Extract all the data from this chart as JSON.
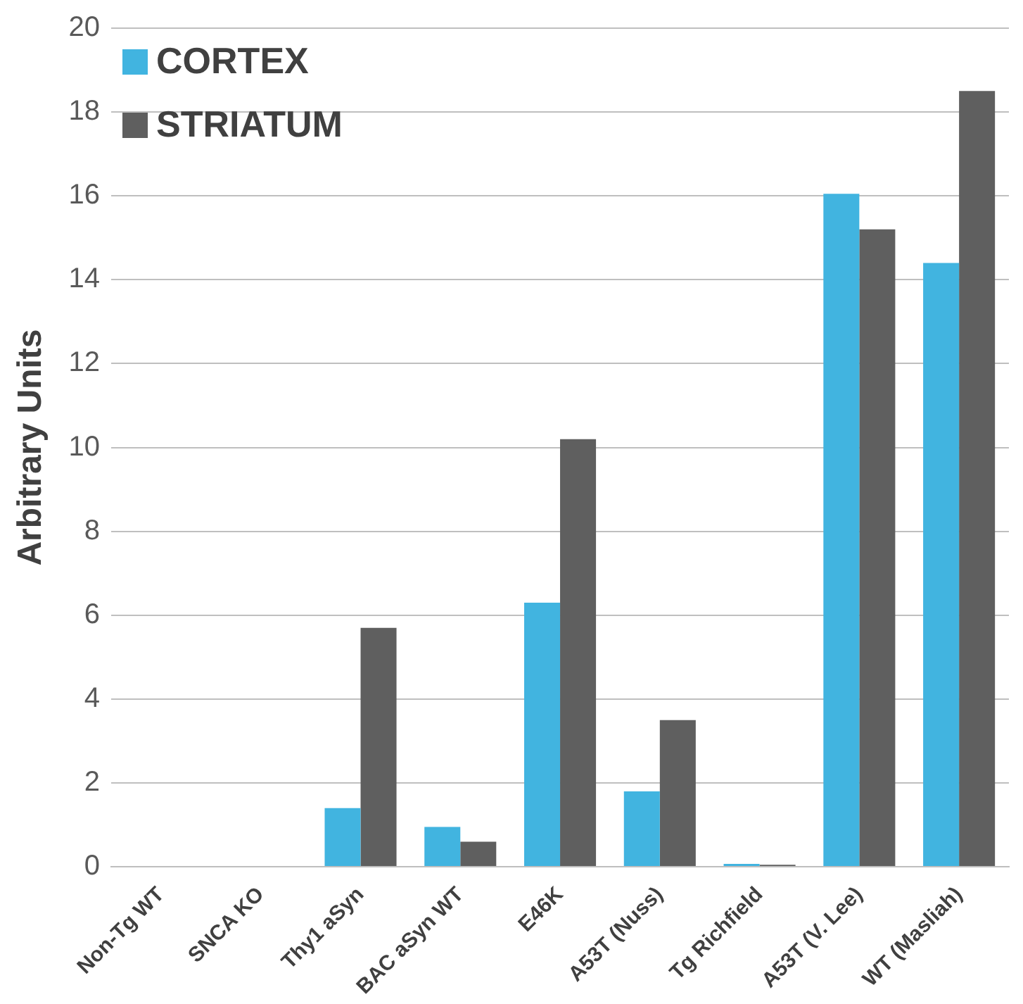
{
  "chart_data": {
    "type": "bar",
    "ylabel": "Arbitrary Units",
    "categories": [
      "Non-Tg WT",
      "SNCA KO",
      "Thy1 aSyn",
      "BAC aSyn WT",
      "E46K",
      "A53T (Nuss)",
      "Tg Richfield",
      "A53T (V. Lee)",
      "WT (Masliah)"
    ],
    "series": [
      {
        "name": "CORTEX",
        "color": "#41b4e0",
        "values": [
          0,
          0,
          1.4,
          0.95,
          6.3,
          1.8,
          0.07,
          16.05,
          14.4
        ]
      },
      {
        "name": "STRIATUM",
        "color": "#5f5f5f",
        "values": [
          0,
          0,
          5.7,
          0.6,
          10.2,
          3.5,
          0.05,
          15.2,
          18.5
        ]
      }
    ],
    "ylim": [
      0,
      20
    ],
    "yticks": [
      0,
      2,
      4,
      6,
      8,
      10,
      12,
      14,
      16,
      18,
      20
    ],
    "grid": "y",
    "legend": "top left"
  }
}
